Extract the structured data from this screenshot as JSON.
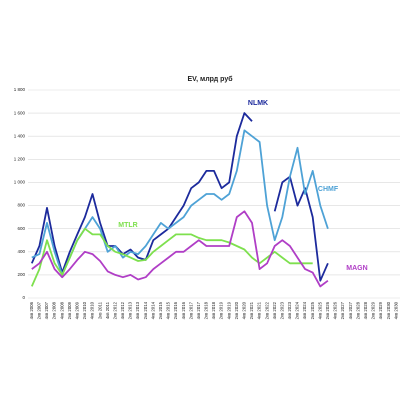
{
  "chart_data": {
    "type": "line",
    "title": "EV, млрд руб",
    "categories": [
      "4кв 2006",
      "2кв 2007",
      "4кв 2007",
      "2кв 2008",
      "4кв 2008",
      "2кв 2009",
      "4кв 2009",
      "2кв 2010",
      "4кв 2010",
      "2кв 2011",
      "4кв 2011",
      "2кв 2012",
      "4кв 2012",
      "2кв 2013",
      "4кв 2013",
      "2кв 2014",
      "4кв 2014",
      "2кв 2015",
      "4кв 2015",
      "2кв 2016",
      "4кв 2016",
      "2кв 2017",
      "4кв 2017",
      "2кв 2018",
      "4кв 2018",
      "2кв 2019",
      "4кв 2019",
      "2кв 2020",
      "4кв 2020",
      "2кв 2021",
      "4кв 2021",
      "2кв 2022",
      "4кв 2022",
      "2кв 2023",
      "4кв 2023",
      "2кв 2024",
      "4кв 2024",
      "2кв 2025",
      "4кв 2025",
      "2кв 2026",
      "4кв 2026",
      "2кв 2027",
      "4кв 2027",
      "2кв 2028",
      "4кв 2028",
      "2кв 2029",
      "4кв 2029",
      "2кв 2030",
      "4кв 2030"
    ],
    "series": [
      {
        "name": "NLMK",
        "color": "#1c2a9c",
        "values": [
          300,
          450,
          780,
          450,
          220,
          400,
          550,
          700,
          900,
          650,
          450,
          450,
          380,
          420,
          350,
          330,
          500,
          550,
          600,
          700,
          800,
          950,
          1000,
          1100,
          1100,
          950,
          1000,
          1400,
          1600,
          1530,
          null,
          null,
          750,
          1000,
          1050,
          800,
          950,
          700,
          150,
          300,
          null,
          null,
          null,
          null,
          null,
          null,
          null,
          null,
          null
        ]
      },
      {
        "name": "CHMF",
        "color": "#4ea2d6",
        "values": [
          350,
          380,
          650,
          400,
          200,
          350,
          500,
          600,
          700,
          600,
          400,
          450,
          350,
          400,
          380,
          450,
          550,
          650,
          600,
          650,
          700,
          800,
          850,
          900,
          900,
          850,
          900,
          1100,
          1450,
          1400,
          1350,
          800,
          500,
          700,
          1050,
          1300,
          900,
          1100,
          800,
          600,
          null,
          null,
          null,
          null,
          null,
          null,
          null,
          null,
          null
        ]
      },
      {
        "name": "MTLR",
        "color": "#7ee04e",
        "values": [
          100,
          250,
          500,
          300,
          200,
          350,
          500,
          600,
          550,
          550,
          450,
          400,
          380,
          350,
          320,
          330,
          400,
          450,
          500,
          550,
          550,
          550,
          520,
          500,
          500,
          500,
          480,
          450,
          420,
          350,
          300,
          350,
          400,
          350,
          300,
          300,
          300,
          300,
          null,
          null,
          null,
          null,
          null,
          null,
          null,
          null,
          null,
          null,
          null
        ]
      },
      {
        "name": "MAGN",
        "color": "#b03ec6",
        "values": [
          250,
          300,
          400,
          250,
          180,
          250,
          330,
          400,
          380,
          320,
          230,
          200,
          180,
          200,
          160,
          180,
          250,
          300,
          350,
          400,
          400,
          450,
          500,
          450,
          450,
          450,
          450,
          700,
          750,
          650,
          250,
          300,
          450,
          500,
          450,
          350,
          250,
          220,
          100,
          150,
          null,
          null,
          null,
          null,
          null,
          null,
          null,
          null,
          null
        ]
      }
    ],
    "ylim": [
      0,
      1800
    ],
    "yticks": [
      0,
      200,
      400,
      600,
      800,
      {
        "value": 1000,
        "label": "1 000"
      },
      {
        "value": 1200,
        "label": "1 200"
      },
      {
        "value": 1400,
        "label": "1 400"
      },
      {
        "value": 1600,
        "label": "1 600"
      },
      {
        "value": 1800,
        "label": "1 800"
      }
    ],
    "grid": true
  }
}
